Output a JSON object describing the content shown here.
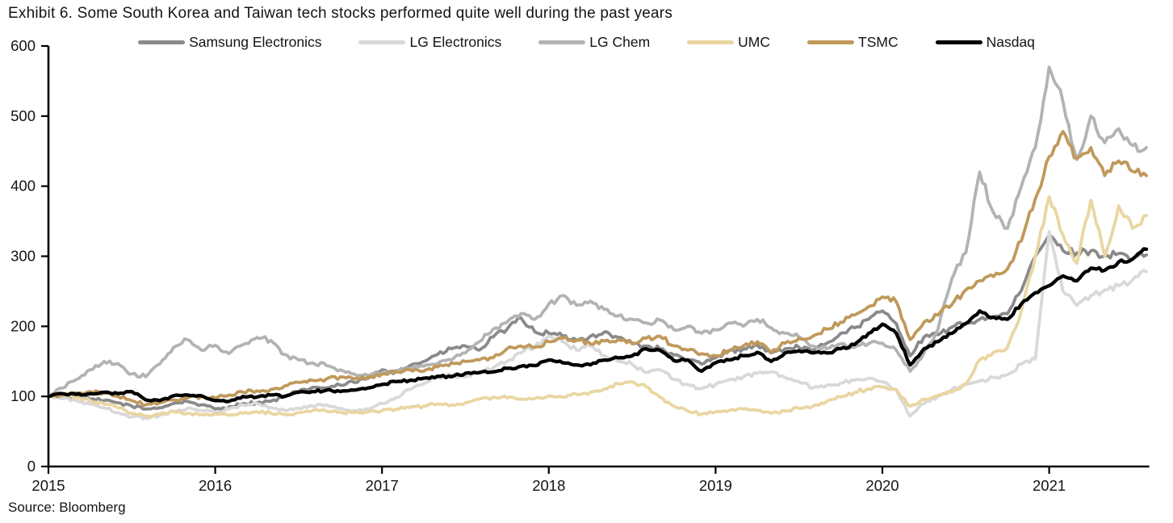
{
  "title": "Exhibit 6. Some South Korea and Taiwan tech stocks performed quite well during the past years",
  "source": "Source: Bloomberg",
  "axis_color": "#000000",
  "text_color": "#141414",
  "chart_data": {
    "type": "line",
    "title": "Exhibit 6. Some South Korea and Taiwan tech stocks performed quite well during the past years",
    "xlabel": "",
    "ylabel": "",
    "ylim": [
      0,
      600
    ],
    "yticks": [
      0,
      100,
      200,
      300,
      400,
      500,
      600
    ],
    "xticks": [
      2015,
      2016,
      2017,
      2018,
      2019,
      2020,
      2021
    ],
    "grid": false,
    "legend_position": "top",
    "frequency": "monthly",
    "index_base": "100 = Jan 2015",
    "months": [
      "2015-01",
      "2015-02",
      "2015-03",
      "2015-04",
      "2015-05",
      "2015-06",
      "2015-07",
      "2015-08",
      "2015-09",
      "2015-10",
      "2015-11",
      "2015-12",
      "2016-01",
      "2016-02",
      "2016-03",
      "2016-04",
      "2016-05",
      "2016-06",
      "2016-07",
      "2016-08",
      "2016-09",
      "2016-10",
      "2016-11",
      "2016-12",
      "2017-01",
      "2017-02",
      "2017-03",
      "2017-04",
      "2017-05",
      "2017-06",
      "2017-07",
      "2017-08",
      "2017-09",
      "2017-10",
      "2017-11",
      "2017-12",
      "2018-01",
      "2018-02",
      "2018-03",
      "2018-04",
      "2018-05",
      "2018-06",
      "2018-07",
      "2018-08",
      "2018-09",
      "2018-10",
      "2018-11",
      "2018-12",
      "2019-01",
      "2019-02",
      "2019-03",
      "2019-04",
      "2019-05",
      "2019-06",
      "2019-07",
      "2019-08",
      "2019-09",
      "2019-10",
      "2019-11",
      "2019-12",
      "2020-01",
      "2020-02",
      "2020-03",
      "2020-04",
      "2020-05",
      "2020-06",
      "2020-07",
      "2020-08",
      "2020-09",
      "2020-10",
      "2020-11",
      "2020-12",
      "2021-01",
      "2021-02",
      "2021-03",
      "2021-04",
      "2021-05",
      "2021-06",
      "2021-07",
      "2021-08"
    ],
    "series": [
      {
        "name": "Samsung Electronics",
        "color": "#8a8a8a",
        "values": [
          100,
          101,
          98,
          96,
          94,
          91,
          86,
          82,
          84,
          90,
          93,
          88,
          82,
          85,
          90,
          91,
          93,
          100,
          107,
          113,
          112,
          116,
          120,
          126,
          138,
          135,
          144,
          150,
          160,
          168,
          172,
          166,
          185,
          196,
          212,
          192,
          190,
          186,
          180,
          186,
          192,
          184,
          176,
          172,
          168,
          159,
          152,
          146,
          155,
          165,
          168,
          173,
          162,
          168,
          170,
          165,
          176,
          190,
          198,
          210,
          222,
          204,
          158,
          185,
          188,
          199,
          204,
          210,
          214,
          218,
          251,
          300,
          330,
          308,
          305,
          308,
          300,
          304,
          296,
          302
        ]
      },
      {
        "name": "LG Electronics",
        "color": "#d9d9d9",
        "values": [
          100,
          97,
          94,
          89,
          84,
          77,
          71,
          69,
          73,
          79,
          83,
          80,
          77,
          82,
          88,
          90,
          84,
          80,
          83,
          86,
          88,
          83,
          80,
          82,
          90,
          98,
          110,
          118,
          127,
          130,
          128,
          133,
          141,
          150,
          162,
          172,
          186,
          178,
          166,
          172,
          158,
          150,
          146,
          134,
          138,
          124,
          117,
          111,
          117,
          124,
          128,
          133,
          135,
          127,
          121,
          112,
          116,
          119,
          123,
          126,
          121,
          110,
          72,
          90,
          100,
          110,
          117,
          122,
          127,
          131,
          146,
          153,
          335,
          250,
          230,
          244,
          252,
          258,
          266,
          278
        ]
      },
      {
        "name": "LG Chem",
        "color": "#b3b3b3",
        "values": [
          100,
          112,
          124,
          138,
          150,
          147,
          132,
          128,
          146,
          170,
          181,
          166,
          173,
          161,
          174,
          184,
          180,
          160,
          152,
          148,
          144,
          138,
          132,
          129,
          134,
          137,
          140,
          143,
          147,
          152,
          162,
          178,
          196,
          206,
          218,
          210,
          232,
          244,
          230,
          236,
          224,
          215,
          210,
          205,
          209,
          195,
          200,
          190,
          195,
          205,
          200,
          210,
          198,
          190,
          185,
          172,
          168,
          175,
          170,
          175,
          176,
          166,
          136,
          162,
          196,
          268,
          305,
          420,
          362,
          340,
          400,
          455,
          570,
          520,
          438,
          500,
          462,
          482,
          458,
          455
        ]
      },
      {
        "name": "UMC",
        "color": "#e9d6a1",
        "values": [
          100,
          102,
          98,
          94,
          89,
          84,
          76,
          72,
          75,
          78,
          76,
          74,
          75,
          73,
          76,
          78,
          76,
          74,
          77,
          80,
          79,
          78,
          77,
          78,
          80,
          82,
          84,
          86,
          89,
          88,
          91,
          96,
          99,
          98,
          96,
          97,
          101,
          99,
          103,
          106,
          111,
          118,
          121,
          114,
          99,
          86,
          79,
          75,
          78,
          80,
          82,
          80,
          76,
          79,
          83,
          86,
          93,
          99,
          106,
          111,
          113,
          110,
          86,
          96,
          101,
          106,
          118,
          152,
          163,
          170,
          222,
          300,
          385,
          330,
          290,
          380,
          300,
          372,
          340,
          358
        ]
      },
      {
        "name": "TSMC",
        "color": "#c0995b",
        "values": [
          100,
          103,
          105,
          107,
          105,
          100,
          94,
          88,
          91,
          95,
          98,
          100,
          98,
          102,
          106,
          108,
          110,
          115,
          120,
          123,
          125,
          128,
          125,
          128,
          132,
          135,
          138,
          136,
          142,
          148,
          150,
          152,
          155,
          168,
          172,
          170,
          178,
          183,
          180,
          175,
          179,
          181,
          175,
          183,
          186,
          172,
          166,
          161,
          158,
          166,
          172,
          178,
          163,
          176,
          183,
          186,
          196,
          206,
          216,
          228,
          242,
          235,
          181,
          206,
          216,
          231,
          252,
          265,
          271,
          282,
          322,
          382,
          442,
          478,
          440,
          455,
          415,
          436,
          421,
          415
        ]
      },
      {
        "name": "Nasdaq",
        "color": "#000000",
        "values": [
          100,
          104,
          103,
          104,
          106,
          104,
          107,
          95,
          94,
          101,
          102,
          101,
          94,
          93,
          100,
          99,
          102,
          100,
          106,
          107,
          109,
          107,
          109,
          112,
          117,
          121,
          123,
          126,
          129,
          128,
          133,
          134,
          135,
          140,
          143,
          144,
          152,
          148,
          145,
          145,
          152,
          155,
          158,
          168,
          166,
          151,
          152,
          136,
          148,
          152,
          158,
          163,
          150,
          162,
          165,
          162,
          162,
          168,
          174,
          190,
          203,
          190,
          145,
          168,
          178,
          190,
          204,
          222,
          213,
          210,
          232,
          248,
          258,
          272,
          265,
          283,
          280,
          292,
          296,
          310
        ]
      }
    ]
  }
}
